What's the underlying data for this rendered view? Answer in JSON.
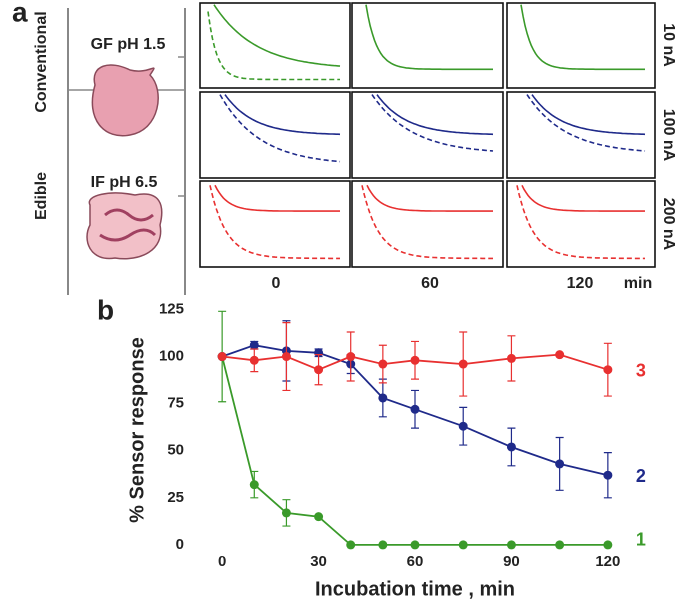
{
  "panel_a": {
    "label": "a",
    "groups": [
      "Conventional",
      "Edible"
    ],
    "media": [
      "GF pH 1.5",
      "IF pH 6.5"
    ],
    "scales": [
      "10 nA",
      "100 nA",
      "200 nA"
    ],
    "times": [
      "0",
      "60",
      "120"
    ],
    "time_unit": "min"
  },
  "chart_data": {
    "type": "line",
    "label": "b",
    "xlabel": "Incubation time , min",
    "ylabel": "% Sensor response",
    "xlim": [
      -10,
      130
    ],
    "ylim": [
      -8,
      130
    ],
    "xticks": [
      0,
      30,
      60,
      90,
      120
    ],
    "yticks": [
      0,
      25,
      50,
      75,
      100,
      125
    ],
    "series": [
      {
        "name": "1",
        "color": "#3a9a2a",
        "x": [
          0,
          10,
          20,
          30,
          40,
          50,
          60,
          75,
          90,
          105,
          120
        ],
        "values": [
          100,
          32,
          17,
          15,
          0,
          0,
          0,
          0,
          0,
          0,
          0
        ],
        "errors": [
          24,
          7,
          7,
          0,
          0,
          0,
          0,
          0,
          0,
          0,
          0
        ]
      },
      {
        "name": "2",
        "color": "#1f2a8a",
        "x": [
          0,
          10,
          20,
          30,
          40,
          50,
          60,
          75,
          90,
          105,
          120
        ],
        "values": [
          100,
          106,
          103,
          102,
          96,
          78,
          72,
          63,
          52,
          43,
          37
        ],
        "errors": [
          0,
          2,
          16,
          2,
          5,
          10,
          10,
          10,
          10,
          14,
          12
        ]
      },
      {
        "name": "3",
        "color": "#e83030",
        "x": [
          0,
          10,
          20,
          30,
          40,
          50,
          60,
          75,
          90,
          105,
          120
        ],
        "values": [
          100,
          98,
          100,
          93,
          100,
          96,
          98,
          96,
          99,
          101,
          93
        ],
        "errors": [
          0,
          6,
          18,
          8,
          13,
          10,
          10,
          17,
          12,
          0,
          14
        ]
      }
    ]
  }
}
